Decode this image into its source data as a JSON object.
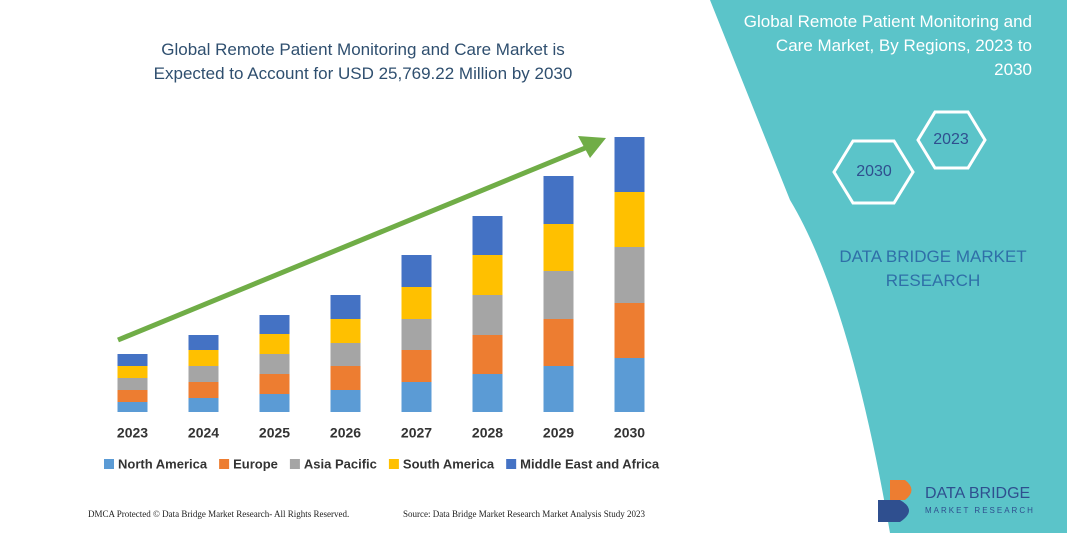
{
  "chart_data": {
    "type": "stacked_bar",
    "title": "Global Remote Patient Monitoring and Care Market is Expected to Account for USD 25,769.22 Million by 2030",
    "categories": [
      "2023",
      "2024",
      "2025",
      "2026",
      "2027",
      "2028",
      "2029",
      "2030"
    ],
    "series": [
      {
        "name": "North America",
        "color": "#5b9bd5",
        "values": [
          10,
          14,
          18,
          22,
          30,
          38,
          46,
          54
        ]
      },
      {
        "name": "Europe",
        "color": "#ed7d31",
        "values": [
          12,
          16,
          20,
          24,
          32,
          39,
          47,
          55
        ]
      },
      {
        "name": "Asia Pacific",
        "color": "#a5a5a5",
        "values": [
          12,
          16,
          20,
          23,
          31,
          40,
          48,
          56
        ]
      },
      {
        "name": "South America",
        "color": "#ffc000",
        "values": [
          12,
          16,
          20,
          24,
          32,
          40,
          47,
          55
        ]
      },
      {
        "name": "Middle East and Africa",
        "color": "#4472c4",
        "values": [
          12,
          15,
          19,
          24,
          32,
          39,
          48,
          55
        ]
      }
    ],
    "ylim": [
      0,
      300
    ]
  },
  "side_panel": {
    "title": "Global Remote Patient Monitoring and Care Market, By Regions, 2023 to 2030",
    "hexagons": [
      "2023",
      "2030"
    ],
    "brand": "DATA BRIDGE MARKET RESEARCH"
  },
  "logo": {
    "name": "DATA BRIDGE",
    "tagline": "MARKET RESEARCH"
  },
  "footer": {
    "left": "DMCA Protected © Data Bridge Market Research- All Rights Reserved.",
    "right": "Source: Data Bridge Market Research Market Analysis Study 2023"
  }
}
